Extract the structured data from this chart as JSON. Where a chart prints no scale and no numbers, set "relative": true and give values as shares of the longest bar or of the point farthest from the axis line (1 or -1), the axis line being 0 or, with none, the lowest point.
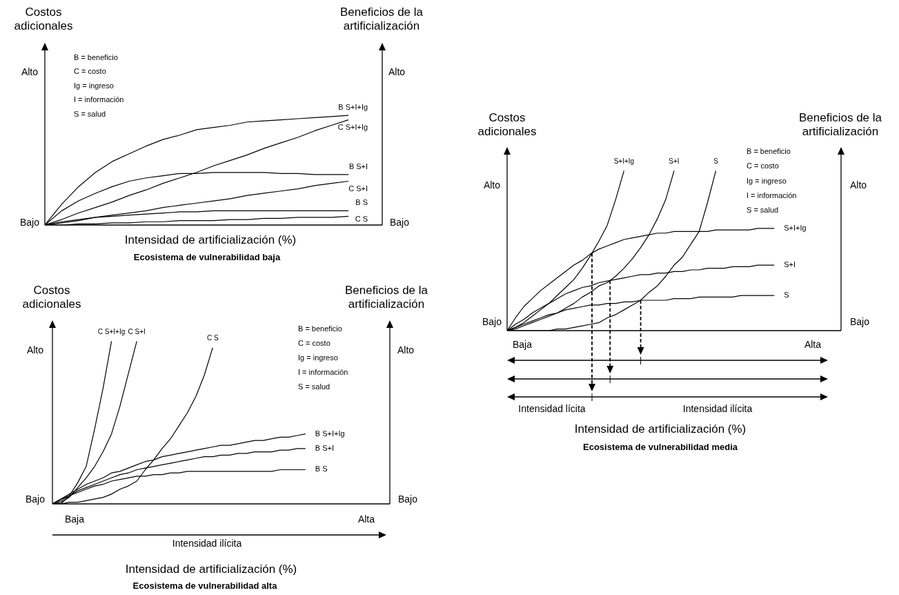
{
  "chart_data": [
    {
      "type": "line",
      "relative": true,
      "title": "Ecosistema de vulnerabilidad baja",
      "xlabel": "Intensidad de artificialización (%)",
      "ylabel": "Costos adicionales",
      "y2label": "Beneficios de la artificialización",
      "categories": [
        null,
        null,
        null,
        null,
        null,
        null,
        null,
        null,
        null,
        null,
        null,
        null,
        null,
        null,
        null,
        null,
        null,
        null,
        null,
        null,
        null
      ],
      "series": [
        {
          "name": "B S+I+Ig",
          "color": "#000000",
          "values": [
            0,
            0.19,
            0.35,
            0.48,
            0.58,
            0.65,
            0.72,
            0.78,
            0.82,
            0.87,
            0.89,
            0.91,
            0.94,
            0.95,
            0.96,
            0.97,
            0.98,
            0.99,
            1,
            null,
            null
          ]
        },
        {
          "name": "C S+I+Ig",
          "color": "#000000",
          "values": [
            0,
            0.05,
            0.11,
            0.16,
            0.21,
            0.27,
            0.32,
            0.38,
            0.43,
            0.48,
            0.54,
            0.59,
            0.64,
            0.7,
            0.75,
            0.8,
            0.86,
            0.91,
            0.96,
            null,
            null
          ]
        },
        {
          "name": "B S+I",
          "color": "#000000",
          "values": [
            0,
            0.13,
            0.22,
            0.29,
            0.35,
            0.4,
            0.43,
            0.45,
            0.47,
            0.47,
            0.48,
            0.48,
            0.48,
            0.48,
            0.47,
            0.47,
            0.46,
            0.46,
            0.46,
            null,
            null
          ]
        },
        {
          "name": "C S+I",
          "color": "#000000",
          "values": [
            0,
            0.02,
            0.04,
            0.07,
            0.09,
            0.11,
            0.13,
            0.16,
            0.18,
            0.2,
            0.22,
            0.24,
            0.27,
            0.29,
            0.31,
            0.33,
            0.36,
            0.38,
            0.4,
            null,
            null
          ]
        },
        {
          "name": "B S",
          "color": "#000000",
          "values": [
            0,
            0.03,
            0.05,
            0.07,
            0.08,
            0.09,
            0.1,
            0.11,
            0.12,
            0.12,
            0.13,
            0.13,
            0.13,
            0.13,
            0.13,
            0.13,
            0.13,
            0.13,
            0.13,
            null,
            null
          ]
        },
        {
          "name": "C S",
          "color": "#000000",
          "values": [
            0,
            0,
            0.01,
            0.01,
            0.02,
            0.02,
            0.03,
            0.03,
            0.04,
            0.04,
            0.04,
            0.05,
            0.05,
            0.06,
            0.06,
            0.07,
            0.07,
            0.07,
            0.08,
            null,
            null
          ]
        }
      ],
      "annotations": [
        "B = beneficio",
        "C = costo",
        "Ig = ingreso",
        "I = información",
        "S = salud",
        "Alto",
        "Bajo",
        "Alto",
        "Bajo"
      ]
    },
    {
      "type": "line",
      "relative": true,
      "title": "Ecosistema de vulnerabilidad media",
      "xlabel": "Intensidad de artificialización (%)",
      "ylabel": "Costos adicionales",
      "y2label": "Beneficios de la artificialización",
      "categories": [
        null,
        null,
        null,
        null,
        null,
        null,
        null,
        null,
        null,
        null,
        null,
        null,
        null,
        null,
        null,
        null,
        null,
        null,
        null,
        null,
        null,
        null,
        null,
        null,
        null,
        null,
        null,
        null,
        null,
        null,
        null,
        null,
        null,
        null,
        null,
        null,
        null,
        null,
        null,
        null,
        null
      ],
      "series": [
        {
          "name": "S+I+Ig",
          "color": "#000000",
          "values": [
            0,
            0.02,
            0.05,
            0.09,
            0.13,
            0.17,
            0.22,
            0.27,
            0.32,
            0.39,
            0.47,
            0.56,
            0.66,
            0.82,
            1,
            null,
            null,
            null,
            null,
            null,
            null,
            null,
            null,
            null,
            null,
            null,
            null,
            null,
            null,
            null,
            null,
            null,
            null,
            null,
            null,
            null,
            null,
            null,
            null,
            null,
            null
          ]
        },
        {
          "name": "S+I",
          "color": "#000000",
          "values": [
            0,
            0.01,
            0.03,
            0.05,
            0.07,
            0.09,
            0.11,
            0.14,
            0.17,
            0.21,
            0.24,
            0.28,
            0.3,
            0.34,
            0.39,
            0.45,
            0.52,
            0.6,
            0.7,
            0.82,
            1,
            null,
            null,
            null,
            null,
            null,
            null,
            null,
            null,
            null,
            null,
            null,
            null,
            null,
            null,
            null,
            null,
            null,
            null,
            null,
            null
          ]
        },
        {
          "name": "S",
          "color": "#000000",
          "values": [
            0,
            0,
            0,
            0,
            0,
            0,
            0.01,
            0.01,
            0.02,
            0.03,
            0.04,
            0.05,
            0.08,
            0.1,
            0.13,
            0.16,
            0.19,
            0.24,
            0.28,
            0.34,
            0.41,
            0.46,
            0.54,
            0.62,
            0.8,
            1,
            null,
            null,
            null,
            null,
            null,
            null,
            null,
            null,
            null,
            null,
            null,
            null,
            null,
            null,
            null
          ]
        },
        {
          "name": "S+I+Ig",
          "color": "#000000",
          "values": [
            0,
            0.08,
            0.15,
            0.2,
            0.25,
            0.29,
            0.33,
            0.37,
            0.41,
            0.44,
            0.48,
            0.51,
            0.53,
            0.55,
            0.57,
            0.58,
            0.59,
            0.6,
            0.61,
            0.61,
            0.62,
            0.62,
            0.62,
            0.62,
            0.62,
            0.63,
            0.63,
            0.63,
            0.63,
            0.63,
            0.64,
            0.64,
            0.64,
            null,
            null,
            null,
            null,
            null,
            null,
            null,
            null
          ]
        },
        {
          "name": "S+I",
          "color": "#000000",
          "values": [
            0,
            0.04,
            0.07,
            0.11,
            0.14,
            0.17,
            0.2,
            0.23,
            0.25,
            0.27,
            0.28,
            0.3,
            0.31,
            0.32,
            0.33,
            0.34,
            0.35,
            0.35,
            0.36,
            0.36,
            0.37,
            0.37,
            0.38,
            0.38,
            0.39,
            0.39,
            0.39,
            0.4,
            0.4,
            0.4,
            0.41,
            0.41,
            0.41,
            null,
            null,
            null,
            null,
            null,
            null,
            null,
            null
          ]
        },
        {
          "name": "S",
          "color": "#000000",
          "values": [
            0,
            0.02,
            0.04,
            0.06,
            0.08,
            0.1,
            0.11,
            0.13,
            0.14,
            0.15,
            0.16,
            0.16,
            0.17,
            0.17,
            0.18,
            0.18,
            0.19,
            0.19,
            0.19,
            0.19,
            0.2,
            0.2,
            0.2,
            0.21,
            0.21,
            0.21,
            0.21,
            0.21,
            0.22,
            0.22,
            0.22,
            0.22,
            0.22,
            null,
            null,
            null,
            null,
            null,
            null,
            null,
            null
          ]
        }
      ],
      "annotations": [
        "B = beneficio",
        "C = costo",
        "Ig = ingreso",
        "I = información",
        "S = salud",
        "Alto",
        "Bajo",
        "Alto",
        "Bajo",
        "Baja",
        "Alta",
        "Intensidad lícita",
        "Intensidad ilícita"
      ]
    },
    {
      "type": "line",
      "relative": true,
      "title": "Ecosistema de vulnerabilidad alta",
      "xlabel": "Intensidad de artificialización (%)",
      "ylabel": "Costos adicionales",
      "y2label": "Beneficios de la artificialización",
      "categories": [
        null,
        null,
        null,
        null,
        null,
        null,
        null,
        null,
        null,
        null,
        null,
        null,
        null,
        null,
        null,
        null,
        null,
        null,
        null,
        null,
        null,
        null,
        null,
        null,
        null,
        null,
        null,
        null,
        null,
        null,
        null,
        null,
        null,
        null,
        null,
        null,
        null,
        null,
        null,
        null,
        null
      ],
      "series": [
        {
          "name": "C S+I+Ig",
          "color": "#000000",
          "values": [
            0,
            0,
            0.05,
            0.13,
            0.23,
            0.46,
            0.71,
            1,
            null,
            null,
            null,
            null,
            null,
            null,
            null,
            null,
            null,
            null,
            null,
            null,
            null,
            null,
            null,
            null,
            null,
            null,
            null,
            null,
            null,
            null,
            null,
            null,
            null,
            null,
            null,
            null,
            null,
            null,
            null,
            null,
            null
          ]
        },
        {
          "name": "C S+I",
          "color": "#000000",
          "values": [
            0,
            0.01,
            0.04,
            0.1,
            0.16,
            0.23,
            0.32,
            0.43,
            0.6,
            0.8,
            1,
            null,
            null,
            null,
            null,
            null,
            null,
            null,
            null,
            null,
            null,
            null,
            null,
            null,
            null,
            null,
            null,
            null,
            null,
            null,
            null,
            null,
            null,
            null,
            null,
            null,
            null,
            null,
            null,
            null,
            null
          ]
        },
        {
          "name": "C S",
          "color": "#000000",
          "values": [
            0,
            0,
            0.01,
            0.01,
            0.02,
            0.03,
            0.04,
            0.06,
            0.09,
            0.11,
            0.14,
            0.21,
            0.27,
            0.34,
            0.4,
            0.48,
            0.56,
            0.66,
            0.79,
            0.96,
            null,
            null,
            null,
            null,
            null,
            null,
            null,
            null,
            null,
            null,
            null,
            null,
            null,
            null,
            null,
            null,
            null,
            null,
            null,
            null,
            null
          ]
        },
        {
          "name": "B S+I+Ig",
          "color": "#000000",
          "values": [
            0,
            0.03,
            0.06,
            0.09,
            0.12,
            0.14,
            0.16,
            0.19,
            0.2,
            0.22,
            0.24,
            0.26,
            0.27,
            0.29,
            0.3,
            0.31,
            0.32,
            0.33,
            0.34,
            0.35,
            0.36,
            0.36,
            0.37,
            0.38,
            0.39,
            0.39,
            0.4,
            0.41,
            0.41,
            0.42,
            0.43,
            null,
            null,
            null,
            null,
            null,
            null,
            null,
            null,
            null,
            null
          ]
        },
        {
          "name": "B S+I",
          "color": "#000000",
          "values": [
            0,
            0.03,
            0.05,
            0.08,
            0.1,
            0.12,
            0.14,
            0.16,
            0.18,
            0.19,
            0.21,
            0.22,
            0.23,
            0.24,
            0.25,
            0.26,
            0.27,
            0.28,
            0.29,
            0.29,
            0.3,
            0.3,
            0.31,
            0.31,
            0.32,
            0.32,
            0.32,
            0.33,
            0.33,
            0.34,
            0.34,
            null,
            null,
            null,
            null,
            null,
            null,
            null,
            null,
            null,
            null
          ]
        },
        {
          "name": "B S",
          "color": "#000000",
          "values": [
            0,
            0.02,
            0.05,
            0.07,
            0.09,
            0.11,
            0.12,
            0.14,
            0.15,
            0.16,
            0.17,
            0.17,
            0.18,
            0.18,
            0.19,
            0.19,
            0.2,
            0.2,
            0.2,
            0.2,
            0.2,
            0.2,
            0.2,
            0.2,
            0.2,
            0.2,
            0.2,
            0.21,
            0.21,
            0.21,
            0.21,
            null,
            null,
            null,
            null,
            null,
            null,
            null,
            null,
            null,
            null
          ]
        }
      ],
      "annotations": [
        "B = beneficio",
        "C = costo",
        "Ig = ingreso",
        "I = información",
        "S = salud",
        "Alto",
        "Bajo",
        "Alto",
        "Bajo",
        "Baja",
        "Alta",
        "Intensidad ilícita"
      ]
    }
  ]
}
